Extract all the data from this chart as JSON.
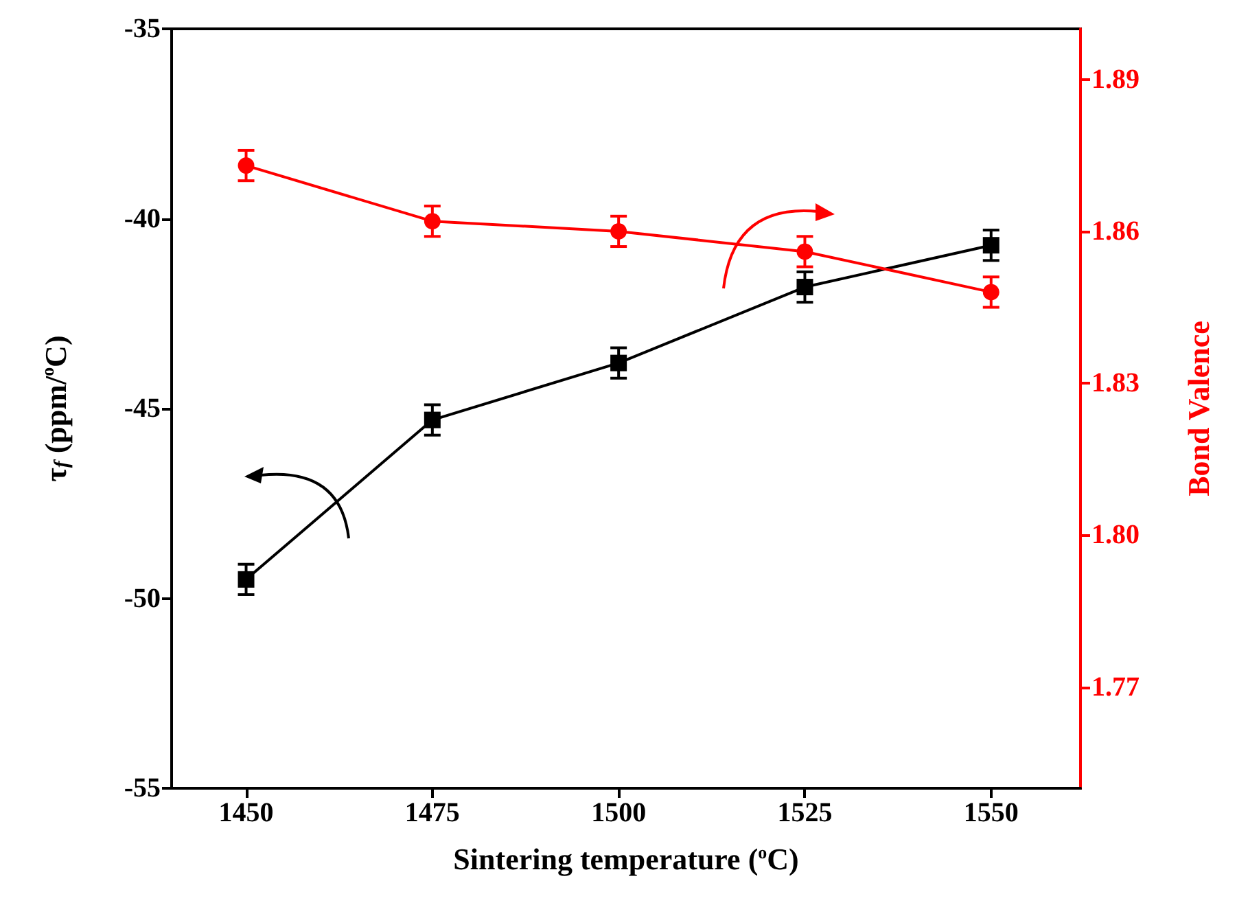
{
  "chart_data": {
    "type": "line",
    "xlabel": "Sintering temperature ($^{o}$C)",
    "ylabel": "τ$_{f}$ (ppm/$^{o}$C)",
    "y2label": "Bond Valence",
    "x": [
      1450,
      1475,
      1500,
      1525,
      1550
    ],
    "xlim": [
      1440,
      1562
    ],
    "xticks": [
      1450,
      1475,
      1500,
      1525,
      1550
    ],
    "ylim": [
      -55,
      -35
    ],
    "yticks": [
      -55,
      -50,
      -45,
      -40,
      -35
    ],
    "y2lim": [
      1.75,
      1.9
    ],
    "y2ticks": [
      1.77,
      {
        "value": 1.8,
        "label": "1.80"
      },
      1.83,
      1.86,
      1.89
    ],
    "line_style": "solid",
    "series": [
      {
        "color": "#000000",
        "marker": "square",
        "values": [
          -49.5,
          -45.3,
          -43.8,
          -41.8,
          -40.7
        ],
        "errors": [
          0.4,
          0.4,
          0.4,
          0.4,
          0.4
        ]
      },
      {
        "color": "#ff0000",
        "marker": "circle",
        "axis": "y2",
        "values": [
          1.873,
          1.862,
          1.86,
          1.856,
          1.848
        ],
        "errors": [
          0.003,
          0.003,
          0.003,
          0.003,
          0.003
        ]
      }
    ]
  }
}
